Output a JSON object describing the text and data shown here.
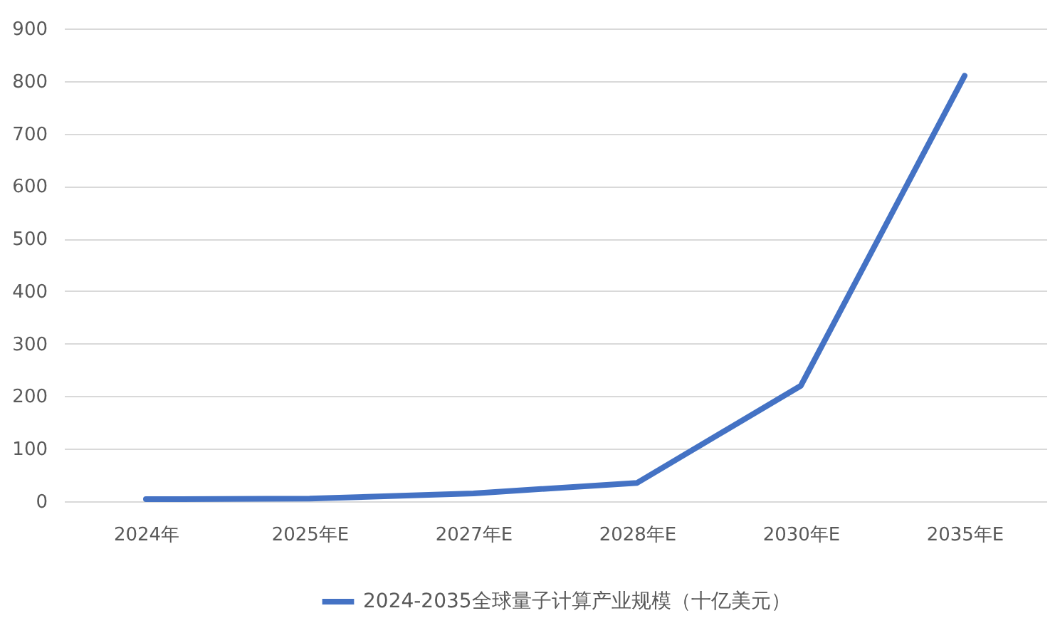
{
  "chart_data": {
    "type": "line",
    "categories": [
      "2024年",
      "2025年E",
      "2027年E",
      "2028年E",
      "2030年E",
      "2035年E"
    ],
    "series": [
      {
        "name": "2024-2035全球量子计算产业规模（十亿美元）",
        "color": "#4472c4",
        "values": [
          4,
          5,
          15,
          35,
          220,
          810
        ]
      }
    ],
    "ylim": [
      0,
      900
    ],
    "yticks": [
      0,
      100,
      200,
      300,
      400,
      500,
      600,
      700,
      800,
      900
    ],
    "grid": "y",
    "legend": "bottom",
    "marker": "none"
  }
}
